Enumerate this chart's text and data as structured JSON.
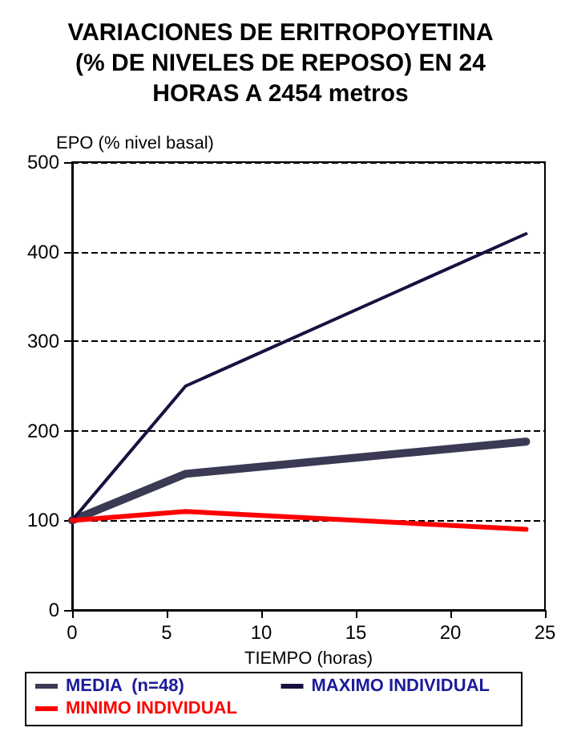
{
  "chart_data": {
    "type": "line",
    "title": "VARIACIONES DE ERITROPOYETINA\n(% DE NIVELES DE REPOSO) EN 24\nHORAS A 2454 metros",
    "xlabel": "TIEMPO (horas)",
    "ylabel": "EPO (% nivel basal)",
    "x": [
      0,
      6,
      24
    ],
    "series": [
      {
        "name": "MEDIA  (n=48)",
        "color": "#3a3a55",
        "values": [
          100,
          152,
          188
        ]
      },
      {
        "name": "MAXIMO INDIVIDUAL",
        "color": "#1a1040",
        "values": [
          100,
          250,
          420
        ]
      },
      {
        "name": "MINIMO INDIVIDUAL",
        "color": "#ff0000",
        "values": [
          100,
          110,
          90
        ]
      }
    ],
    "xlim": [
      0,
      25
    ],
    "xticks": [
      0,
      5,
      10,
      15,
      20,
      25
    ],
    "ylim": [
      0,
      500
    ],
    "yticks": [
      0,
      100,
      200,
      300,
      400,
      500
    ],
    "grid": "y",
    "legend": "bottom",
    "marker": "none",
    "line_style": "solid"
  }
}
